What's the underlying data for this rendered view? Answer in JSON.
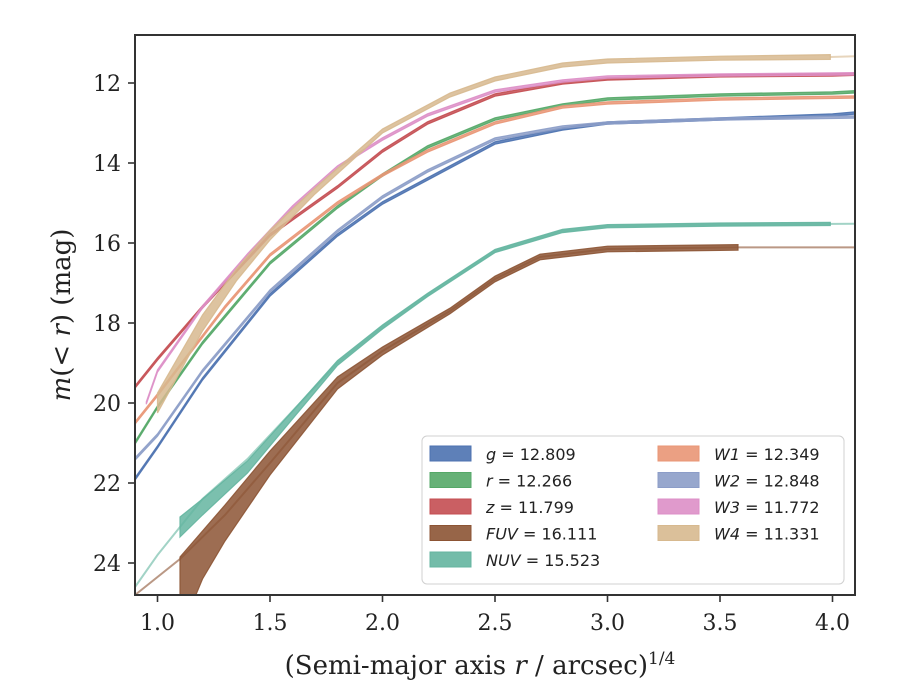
{
  "chart_data": {
    "type": "line",
    "title": "",
    "xlabel": "(Semi-major axis r / arcsec)",
    "xlabel_parts": {
      "prefix": "(Semi-major axis ",
      "var": "r",
      "suffix": " / arcsec)",
      "exponent": "1/4"
    },
    "ylabel_parts": {
      "m": "m",
      "open": "(",
      "lt": "<",
      "r": "r",
      "close": ")",
      "unit": "(mag)"
    },
    "xlim": [
      0.9,
      4.1
    ],
    "ylim": [
      24.8,
      10.8
    ],
    "y_inverted": true,
    "xticks": [
      "1.0",
      "1.5",
      "2.0",
      "2.5",
      "3.0",
      "3.5",
      "4.0"
    ],
    "xtick_values": [
      1.0,
      1.5,
      2.0,
      2.5,
      3.0,
      3.5,
      4.0
    ],
    "yticks": [
      "12",
      "14",
      "16",
      "18",
      "20",
      "22",
      "24"
    ],
    "ytick_values": [
      12,
      14,
      16,
      18,
      20,
      22,
      24
    ],
    "legend_position": "lower-right",
    "series": [
      {
        "band": "g",
        "value": "12.809",
        "color": "#4c72b0",
        "band_min": 0.06,
        "x": [
          0.9,
          1.0,
          1.2,
          1.5,
          1.8,
          2.0,
          2.2,
          2.5,
          2.8,
          3.0,
          3.5,
          4.0,
          4.1
        ],
        "y": [
          21.9,
          21.1,
          19.4,
          17.3,
          15.8,
          15.0,
          14.4,
          13.5,
          13.15,
          13.0,
          12.9,
          12.8,
          12.75
        ]
      },
      {
        "band": "r",
        "value": "12.266",
        "color": "#55a868",
        "band_min": 0.06,
        "x": [
          0.9,
          1.0,
          1.2,
          1.5,
          1.8,
          2.0,
          2.2,
          2.5,
          2.8,
          3.0,
          3.5,
          4.0,
          4.1
        ],
        "y": [
          21.0,
          20.1,
          18.5,
          16.5,
          15.1,
          14.3,
          13.6,
          12.9,
          12.55,
          12.4,
          12.3,
          12.25,
          12.22
        ]
      },
      {
        "band": "z",
        "value": "11.799",
        "color": "#c44e52",
        "band_min": 0.06,
        "x": [
          0.9,
          1.0,
          1.2,
          1.5,
          1.8,
          2.0,
          2.2,
          2.5,
          2.8,
          3.0,
          3.5,
          4.0,
          4.1
        ],
        "y": [
          19.6,
          18.9,
          17.6,
          15.8,
          14.6,
          13.7,
          13.0,
          12.3,
          12.0,
          11.9,
          11.82,
          11.8,
          11.78
        ]
      },
      {
        "band": "FUV",
        "value": "16.111",
        "color": "#8c5434",
        "band_min": 0.14,
        "x": [
          1.1,
          1.2,
          1.3,
          1.5,
          1.8,
          2.0,
          2.3,
          2.5,
          2.7,
          3.0,
          3.58
        ],
        "y": [
          24.8,
          23.8,
          23.0,
          21.5,
          19.5,
          18.7,
          17.7,
          16.9,
          16.35,
          16.15,
          16.11
        ],
        "spread": [
          1.9,
          1.2,
          0.9,
          0.6,
          0.3,
          0.2,
          0.1,
          0.1,
          0.08,
          0.06,
          0.06
        ],
        "extension": {
          "x": [
            0.9,
            1.1,
            1.3,
            1.5,
            1.8,
            2.0,
            2.3,
            2.5,
            2.7,
            3.0,
            3.58,
            4.1
          ],
          "y": [
            24.8,
            23.9,
            22.8,
            21.5,
            19.5,
            18.7,
            17.7,
            16.9,
            16.35,
            16.15,
            16.11,
            16.11
          ]
        }
      },
      {
        "band": "NUV",
        "value": "15.523",
        "color": "#64b5a0",
        "band_min": 0.08,
        "x": [
          1.1,
          1.2,
          1.4,
          1.6,
          1.8,
          2.0,
          2.2,
          2.5,
          2.8,
          3.0,
          3.5,
          3.99
        ],
        "y": [
          23.1,
          22.6,
          21.6,
          20.3,
          19.0,
          18.1,
          17.3,
          16.2,
          15.7,
          15.58,
          15.54,
          15.523
        ],
        "spread": [
          0.5,
          0.4,
          0.3,
          0.2,
          0.12,
          0.1,
          0.08,
          0.06,
          0.05,
          0.05,
          0.05,
          0.05
        ],
        "extension": {
          "x": [
            0.9,
            1.0,
            1.2,
            1.4,
            1.6,
            1.8,
            2.0,
            2.2,
            2.5,
            2.8,
            3.0,
            3.5,
            4.1
          ],
          "y": [
            24.6,
            23.8,
            22.4,
            21.4,
            20.2,
            19.0,
            18.1,
            17.3,
            16.2,
            15.7,
            15.58,
            15.54,
            15.52
          ]
        }
      },
      {
        "band": "W1",
        "value": "12.349",
        "color": "#e99675",
        "band_min": 0.06,
        "x": [
          0.9,
          1.0,
          1.3,
          1.5,
          1.8,
          2.0,
          2.2,
          2.5,
          2.8,
          3.0,
          3.5,
          4.1
        ],
        "y": [
          20.5,
          19.8,
          17.6,
          16.3,
          15.0,
          14.3,
          13.7,
          13.0,
          12.6,
          12.5,
          12.4,
          12.35
        ]
      },
      {
        "band": "W2",
        "value": "12.848",
        "color": "#8c9dc8",
        "band_min": 0.06,
        "x": [
          0.9,
          1.0,
          1.2,
          1.5,
          1.8,
          2.0,
          2.2,
          2.5,
          2.8,
          3.0,
          3.5,
          4.1
        ],
        "y": [
          21.4,
          20.8,
          19.2,
          17.2,
          15.7,
          14.85,
          14.2,
          13.4,
          13.1,
          13.0,
          12.9,
          12.85
        ]
      },
      {
        "band": "W3",
        "value": "11.772",
        "color": "#dd8fc7",
        "band_min": 0.06,
        "x": [
          0.95,
          1.0,
          1.2,
          1.4,
          1.6,
          1.8,
          2.0,
          2.2,
          2.5,
          2.8,
          3.0,
          3.5,
          4.1
        ],
        "y": [
          20.0,
          19.2,
          17.6,
          16.3,
          15.1,
          14.1,
          13.4,
          12.8,
          12.2,
          11.95,
          11.85,
          11.8,
          11.77
        ]
      },
      {
        "band": "W4",
        "value": "11.331",
        "color": "#d7b98f",
        "band_min": 0.1,
        "x": [
          1.0,
          1.2,
          1.35,
          1.5,
          1.7,
          2.0,
          2.3,
          2.5,
          2.8,
          3.0,
          3.5,
          3.99
        ],
        "y": [
          20.0,
          18.0,
          16.8,
          15.8,
          14.7,
          13.2,
          12.3,
          11.9,
          11.55,
          11.45,
          11.38,
          11.35
        ],
        "spread": [
          0.5,
          0.4,
          0.3,
          0.25,
          0.15,
          0.1,
          0.08,
          0.08,
          0.08,
          0.08,
          0.1,
          0.12
        ],
        "extension": {
          "x": [
            3.99,
            4.1
          ],
          "y": [
            11.35,
            11.33
          ]
        }
      }
    ]
  }
}
